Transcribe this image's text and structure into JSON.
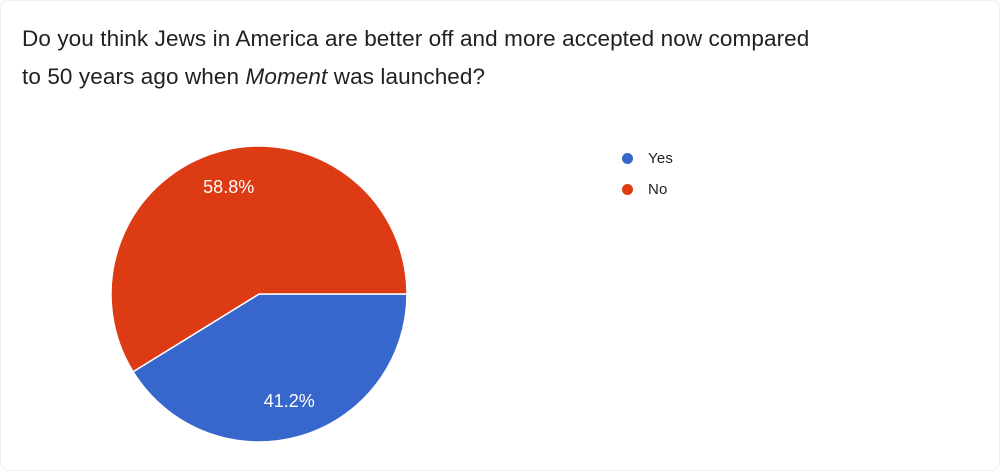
{
  "title": {
    "line1": "Do you think Jews in America are better off and more accepted now compared",
    "line2_prefix": "to 50 years ago when ",
    "italic_word": "Moment",
    "line2_suffix": " was launched?"
  },
  "legend": {
    "items": [
      {
        "label": "Yes",
        "color": "#3767CD"
      },
      {
        "label": "No",
        "color": "#DC3B14"
      }
    ]
  },
  "chart_data": {
    "type": "pie",
    "title": "Do you think Jews in America are better off and more accepted now compared to 50 years ago when Moment was launched?",
    "categories": [
      "Yes",
      "No"
    ],
    "values": [
      41.2,
      58.8
    ],
    "labels": [
      "41.2%",
      "58.8%"
    ],
    "colors": [
      "#3767CD",
      "#DC3B14"
    ],
    "start_angle_deg": 0,
    "direction": "clockwise",
    "legend_position": "right",
    "slice_label_color": "#ffffff",
    "slice_border_color": "#ffffff"
  }
}
